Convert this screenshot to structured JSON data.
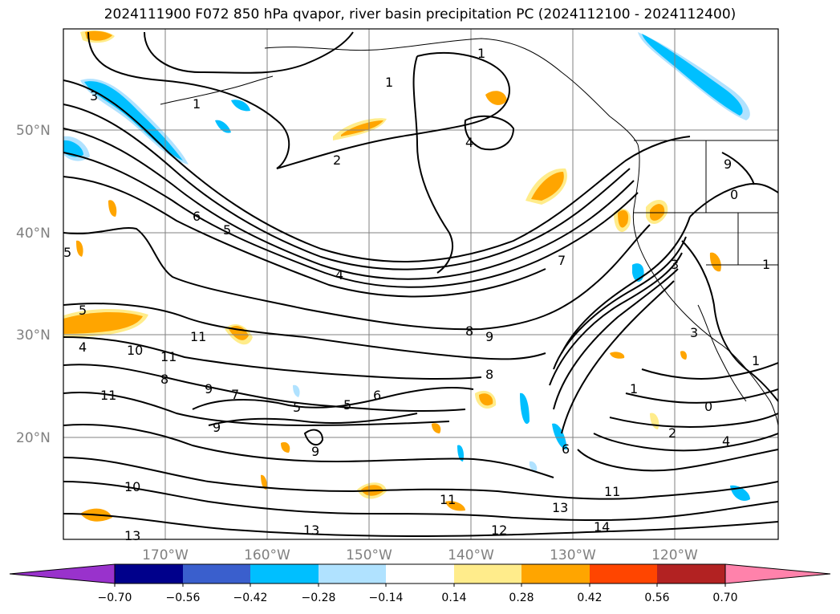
{
  "title": "2024111900 F072 850 hPa qvapor, river basin precipitation PC (2024112100 - 2024112400)",
  "map": {
    "lat_labels": [
      "50°N",
      "40°N",
      "30°N",
      "20°N"
    ],
    "lon_labels": [
      "170°W",
      "160°W",
      "150°W",
      "140°W",
      "130°W",
      "120°W"
    ],
    "gridline_color": "#808080",
    "contour_color": "#000000"
  },
  "contour_labels": [
    "3",
    "1",
    "1",
    "1",
    "2",
    "4",
    "6",
    "5",
    "4",
    "7",
    "5",
    "5",
    "4",
    "10",
    "11",
    "11",
    "8",
    "9",
    "11",
    "9",
    "8",
    "7",
    "6",
    "5",
    "5",
    "9",
    "8",
    "9",
    "10",
    "11",
    "13",
    "13",
    "12",
    "14",
    "13",
    "11",
    "1",
    "2",
    "3",
    "6",
    "9",
    "0",
    "1",
    "0",
    "1",
    "3",
    "4"
  ],
  "colorbar": {
    "ticks": [
      "−0.70",
      "−0.56",
      "−0.42",
      "−0.28",
      "−0.14",
      "0.14",
      "0.28",
      "0.42",
      "0.56",
      "0.70"
    ],
    "colors": [
      "#9932cc",
      "#00008b",
      "#3a5fcd",
      "#00bfff",
      "#b0e2ff",
      "#ffffff",
      "#ffec8b",
      "#ffa500",
      "#ff4500",
      "#b22222",
      "#ff82ab"
    ],
    "under_color": "#9932cc",
    "over_color": "#ff82ab"
  },
  "anomaly_colors": {
    "neg_strong": "#00bfff",
    "neg_weak": "#b0e2ff",
    "pos_weak": "#ffec8b",
    "pos_strong": "#ffa500"
  }
}
